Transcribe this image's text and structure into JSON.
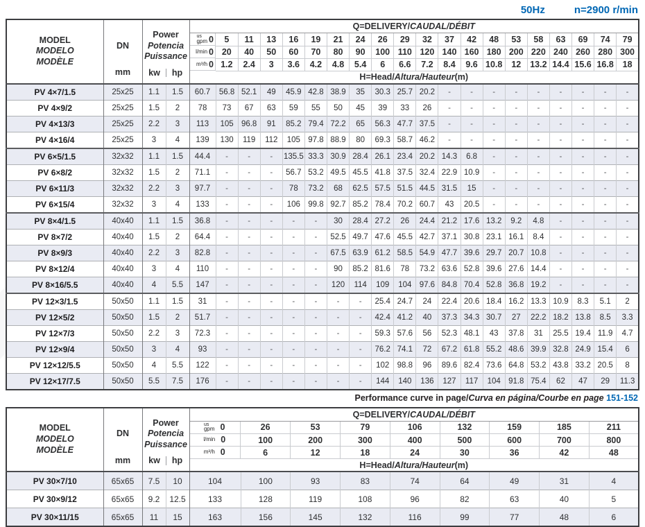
{
  "header": {
    "frequency": "50Hz",
    "speed": "n=2900 r/min"
  },
  "labels": {
    "model_lines": [
      "MODEL",
      "MODELO",
      "MODÈLE"
    ],
    "dn": "DN",
    "mm": "mm",
    "power_lines": [
      "Power",
      "Potencia",
      "Puissance"
    ],
    "kw": "kw",
    "hp": "hp",
    "q_title_plain": "Q=DELIVERY/",
    "q_title_italic": "CAUDAL/DÉBIT",
    "h_title_plain": "H=Head/",
    "h_title_italic": "Altura/Hauteur",
    "h_title_suffix": "(m)",
    "unit_gpm_sup": "us",
    "unit_gpm": "gpm",
    "unit_lmin": "l/min",
    "unit_m3h": "m³/h"
  },
  "curve_note": {
    "plain": "Performance curve in page/",
    "italic": "Curva en página/Courbe en page",
    "pages": "151-152"
  },
  "colors": {
    "accent_blue": "#0067b4",
    "row_stripe": "#e9ebf3"
  },
  "table1": {
    "q_usgpm": [
      "0",
      "5",
      "11",
      "13",
      "16",
      "19",
      "21",
      "24",
      "26",
      "29",
      "32",
      "37",
      "42",
      "48",
      "53",
      "58",
      "63",
      "69",
      "74",
      "79"
    ],
    "q_lmin": [
      "0",
      "20",
      "40",
      "50",
      "60",
      "70",
      "80",
      "90",
      "100",
      "110",
      "120",
      "140",
      "160",
      "180",
      "200",
      "220",
      "240",
      "260",
      "280",
      "300"
    ],
    "q_m3h": [
      "0",
      "1.2",
      "2.4",
      "3",
      "3.6",
      "4.2",
      "4.8",
      "5.4",
      "6",
      "6.6",
      "7.2",
      "8.4",
      "9.6",
      "10.8",
      "12",
      "13.2",
      "14.4",
      "15.6",
      "16.8",
      "18"
    ],
    "groups": [
      {
        "rows": [
          {
            "model": "PV 4×7/1.5",
            "dn": "25x25",
            "kw": "1.1",
            "hp": "1.5",
            "head": [
              "60.7",
              "56.8",
              "52.1",
              "49",
              "45.9",
              "42.8",
              "38.9",
              "35",
              "30.3",
              "25.7",
              "20.2",
              "-",
              "-",
              "-",
              "-",
              "-",
              "-",
              "-",
              "-",
              "-"
            ]
          },
          {
            "model": "PV 4×9/2",
            "dn": "25x25",
            "kw": "1.5",
            "hp": "2",
            "head": [
              "78",
              "73",
              "67",
              "63",
              "59",
              "55",
              "50",
              "45",
              "39",
              "33",
              "26",
              "-",
              "-",
              "-",
              "-",
              "-",
              "-",
              "-",
              "-",
              "-"
            ]
          },
          {
            "model": "PV 4×13/3",
            "dn": "25x25",
            "kw": "2.2",
            "hp": "3",
            "head": [
              "113",
              "105",
              "96.8",
              "91",
              "85.2",
              "79.4",
              "72.2",
              "65",
              "56.3",
              "47.7",
              "37.5",
              "-",
              "-",
              "-",
              "-",
              "-",
              "-",
              "-",
              "-",
              "-"
            ]
          },
          {
            "model": "PV 4×16/4",
            "dn": "25x25",
            "kw": "3",
            "hp": "4",
            "head": [
              "139",
              "130",
              "119",
              "112",
              "105",
              "97.8",
              "88.9",
              "80",
              "69.3",
              "58.7",
              "46.2",
              "-",
              "-",
              "-",
              "-",
              "-",
              "-",
              "-",
              "-",
              "-"
            ]
          }
        ]
      },
      {
        "rows": [
          {
            "model": "PV 6×5/1.5",
            "dn": "32x32",
            "kw": "1.1",
            "hp": "1.5",
            "head": [
              "44.4",
              "-",
              "-",
              "-",
              "135.5",
              "33.3",
              "30.9",
              "28.4",
              "26.1",
              "23.4",
              "20.2",
              "14.3",
              "6.8",
              "-",
              "-",
              "-",
              "-",
              "-",
              "-",
              "-"
            ]
          },
          {
            "model": "PV 6×8/2",
            "dn": "32x32",
            "kw": "1.5",
            "hp": "2",
            "head": [
              "71.1",
              "-",
              "-",
              "-",
              "56.7",
              "53.2",
              "49.5",
              "45.5",
              "41.8",
              "37.5",
              "32.4",
              "22.9",
              "10.9",
              "-",
              "-",
              "-",
              "-",
              "-",
              "-",
              "-"
            ]
          },
          {
            "model": "PV 6×11/3",
            "dn": "32x32",
            "kw": "2.2",
            "hp": "3",
            "head": [
              "97.7",
              "-",
              "-",
              "-",
              "78",
              "73.2",
              "68",
              "62.5",
              "57.5",
              "51.5",
              "44.5",
              "31.5",
              "15",
              "-",
              "-",
              "-",
              "-",
              "-",
              "-",
              "-"
            ]
          },
          {
            "model": "PV 6×15/4",
            "dn": "32x32",
            "kw": "3",
            "hp": "4",
            "head": [
              "133",
              "-",
              "-",
              "-",
              "106",
              "99.8",
              "92.7",
              "85.2",
              "78.4",
              "70.2",
              "60.7",
              "43",
              "20.5",
              "-",
              "-",
              "-",
              "-",
              "-",
              "-",
              "-"
            ]
          }
        ]
      },
      {
        "rows": [
          {
            "model": "PV 8×4/1.5",
            "dn": "40x40",
            "kw": "1.1",
            "hp": "1.5",
            "head": [
              "36.8",
              "-",
              "-",
              "-",
              "-",
              "-",
              "30",
              "28.4",
              "27.2",
              "26",
              "24.4",
              "21.2",
              "17.6",
              "13.2",
              "9.2",
              "4.8",
              "-",
              "-",
              "-",
              "-"
            ]
          },
          {
            "model": "PV 8×7/2",
            "dn": "40x40",
            "kw": "1.5",
            "hp": "2",
            "head": [
              "64.4",
              "-",
              "-",
              "-",
              "-",
              "-",
              "52.5",
              "49.7",
              "47.6",
              "45.5",
              "42.7",
              "37.1",
              "30.8",
              "23.1",
              "16.1",
              "8.4",
              "-",
              "-",
              "-",
              "-"
            ]
          },
          {
            "model": "PV 8×9/3",
            "dn": "40x40",
            "kw": "2.2",
            "hp": "3",
            "head": [
              "82.8",
              "-",
              "-",
              "-",
              "-",
              "-",
              "67.5",
              "63.9",
              "61.2",
              "58.5",
              "54.9",
              "47.7",
              "39.6",
              "29.7",
              "20.7",
              "10.8",
              "-",
              "-",
              "-",
              "-"
            ]
          },
          {
            "model": "PV 8×12/4",
            "dn": "40x40",
            "kw": "3",
            "hp": "4",
            "head": [
              "110",
              "-",
              "-",
              "-",
              "-",
              "-",
              "90",
              "85.2",
              "81.6",
              "78",
              "73.2",
              "63.6",
              "52.8",
              "39.6",
              "27.6",
              "14.4",
              "-",
              "-",
              "-",
              "-"
            ]
          },
          {
            "model": "PV 8×16/5.5",
            "dn": "40x40",
            "kw": "4",
            "hp": "5.5",
            "head": [
              "147",
              "-",
              "-",
              "-",
              "-",
              "-",
              "120",
              "114",
              "109",
              "104",
              "97.6",
              "84.8",
              "70.4",
              "52.8",
              "36.8",
              "19.2",
              "-",
              "-",
              "-",
              "-"
            ]
          }
        ]
      },
      {
        "rows": [
          {
            "model": "PV 12×3/1.5",
            "dn": "50x50",
            "kw": "1.1",
            "hp": "1.5",
            "head": [
              "31",
              "-",
              "-",
              "-",
              "-",
              "-",
              "-",
              "-",
              "25.4",
              "24.7",
              "24",
              "22.4",
              "20.6",
              "18.4",
              "16.2",
              "13.3",
              "10.9",
              "8.3",
              "5.1",
              "2"
            ]
          },
          {
            "model": "PV 12×5/2",
            "dn": "50x50",
            "kw": "1.5",
            "hp": "2",
            "head": [
              "51.7",
              "-",
              "-",
              "-",
              "-",
              "-",
              "-",
              "-",
              "42.4",
              "41.2",
              "40",
              "37.3",
              "34.3",
              "30.7",
              "27",
              "22.2",
              "18.2",
              "13.8",
              "8.5",
              "3.3"
            ]
          },
          {
            "model": "PV 12×7/3",
            "dn": "50x50",
            "kw": "2.2",
            "hp": "3",
            "head": [
              "72.3",
              "-",
              "-",
              "-",
              "-",
              "-",
              "-",
              "-",
              "59.3",
              "57.6",
              "56",
              "52.3",
              "48.1",
              "43",
              "37.8",
              "31",
              "25.5",
              "19.4",
              "11.9",
              "4.7"
            ]
          },
          {
            "model": "PV 12×9/4",
            "dn": "50x50",
            "kw": "3",
            "hp": "4",
            "head": [
              "93",
              "-",
              "-",
              "-",
              "-",
              "-",
              "-",
              "-",
              "76.2",
              "74.1",
              "72",
              "67.2",
              "61.8",
              "55.2",
              "48.6",
              "39.9",
              "32.8",
              "24.9",
              "15.4",
              "6"
            ]
          },
          {
            "model": "PV 12×12/5.5",
            "dn": "50x50",
            "kw": "4",
            "hp": "5.5",
            "head": [
              "122",
              "-",
              "-",
              "-",
              "-",
              "-",
              "-",
              "-",
              "102",
              "98.8",
              "96",
              "89.6",
              "82.4",
              "73.6",
              "64.8",
              "53.2",
              "43.8",
              "33.2",
              "20.5",
              "8"
            ]
          },
          {
            "model": "PV 12×17/7.5",
            "dn": "50x50",
            "kw": "5.5",
            "hp": "7.5",
            "head": [
              "176",
              "-",
              "-",
              "-",
              "-",
              "-",
              "-",
              "-",
              "144",
              "140",
              "136",
              "127",
              "117",
              "104",
              "91.8",
              "75.4",
              "62",
              "47",
              "29",
              "11.3"
            ]
          }
        ]
      }
    ]
  },
  "table2": {
    "q_usgpm": [
      "0",
      "26",
      "53",
      "79",
      "106",
      "132",
      "159",
      "185",
      "211"
    ],
    "q_lmin": [
      "0",
      "100",
      "200",
      "300",
      "400",
      "500",
      "600",
      "700",
      "800"
    ],
    "q_m3h": [
      "0",
      "6",
      "12",
      "18",
      "24",
      "30",
      "36",
      "42",
      "48"
    ],
    "groups": [
      {
        "rows": [
          {
            "model": "PV 30×7/10",
            "dn": "65x65",
            "kw": "7.5",
            "hp": "10",
            "head": [
              "104",
              "100",
              "93",
              "83",
              "74",
              "64",
              "49",
              "31",
              "4"
            ]
          },
          {
            "model": "PV 30×9/12",
            "dn": "65x65",
            "kw": "9.2",
            "hp": "12.5",
            "head": [
              "133",
              "128",
              "119",
              "108",
              "96",
              "82",
              "63",
              "40",
              "5"
            ]
          },
          {
            "model": "PV 30×11/15",
            "dn": "65x65",
            "kw": "11",
            "hp": "15",
            "head": [
              "163",
              "156",
              "145",
              "132",
              "116",
              "99",
              "77",
              "48",
              "6"
            ]
          }
        ]
      }
    ]
  }
}
